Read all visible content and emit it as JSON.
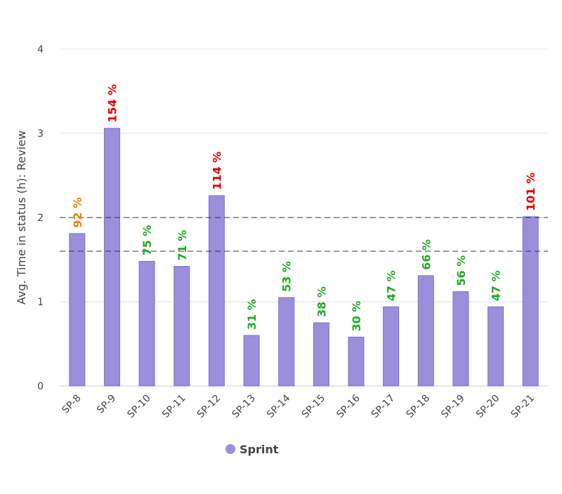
{
  "chart_data": {
    "type": "bar",
    "title": "",
    "xlabel": "",
    "ylabel": "Avg. Time in status (h): Review",
    "ylim": [
      0,
      4
    ],
    "yticks": [
      0,
      1,
      2,
      3,
      4
    ],
    "grid": true,
    "legend_position": "bottom",
    "categories": [
      "SP-8",
      "SP-9",
      "SP-10",
      "SP-11",
      "SP-12",
      "SP-13",
      "SP-14",
      "SP-15",
      "SP-16",
      "SP-17",
      "SP-18",
      "SP-19",
      "SP-20",
      "SP-21"
    ],
    "series": [
      {
        "name": "Sprint",
        "color": "#9b8fdb",
        "values": [
          1.81,
          3.06,
          1.48,
          1.42,
          2.26,
          0.6,
          1.05,
          0.75,
          0.58,
          0.94,
          1.31,
          1.12,
          0.94,
          2.01
        ],
        "data_labels": [
          "92 %",
          "154 %",
          "75 %",
          "71 %",
          "114 %",
          "31 %",
          "53 %",
          "38 %",
          "30 %",
          "47 %",
          "66 %",
          "56 %",
          "47 %",
          "101 %"
        ],
        "label_colors": [
          "#f07f00",
          "#e00000",
          "#22aa22",
          "#22aa22",
          "#e00000",
          "#22aa22",
          "#22aa22",
          "#22aa22",
          "#22aa22",
          "#22aa22",
          "#22aa22",
          "#22aa22",
          "#22aa22",
          "#e00000"
        ]
      }
    ],
    "reference_lines": [
      2.0,
      1.6
    ]
  }
}
